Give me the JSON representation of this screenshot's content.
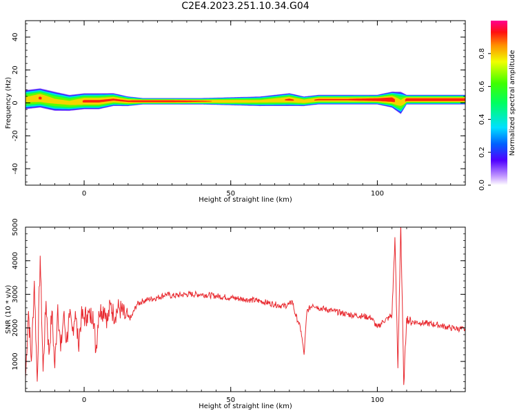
{
  "figure": {
    "title": "C2E4.2023.251.10.34.G04"
  },
  "chart_data": [
    {
      "type": "heatmap",
      "xlabel": "Height of straight line (km)",
      "ylabel": "Frequency (Hz)",
      "xlim": [
        -20,
        130
      ],
      "ylim": [
        -50,
        50
      ],
      "xticks": [
        0,
        50,
        100
      ],
      "yticks": [
        -40,
        -20,
        0,
        20,
        40
      ],
      "colorbar": {
        "label": "Normalized spectral amplitude",
        "range": [
          0,
          1
        ],
        "ticks": [
          0.0,
          0.2,
          0.4,
          0.6,
          0.8
        ],
        "colormap": "rainbow (violet-blue-cyan-green-yellow-red-magenta)"
      },
      "ridge": {
        "x": [
          -20,
          -15,
          -10,
          -5,
          0,
          5,
          10,
          15,
          20,
          30,
          40,
          50,
          60,
          70,
          75,
          80,
          90,
          100,
          105,
          108,
          110,
          115,
          120,
          130
        ],
        "center_hz": [
          2,
          3,
          1,
          0,
          1,
          1,
          2,
          1,
          1,
          1,
          1,
          1,
          1,
          2,
          1,
          2,
          2,
          2,
          2,
          0,
          2,
          2,
          2,
          2
        ],
        "halfwidth_hz": [
          6,
          6,
          6,
          5,
          5,
          5,
          4,
          3,
          2,
          2,
          2,
          2.5,
          3,
          4,
          3,
          3,
          3,
          3,
          5,
          7,
          3,
          3,
          3,
          3
        ],
        "peak_amplitude": [
          0.8,
          0.9,
          0.8,
          0.8,
          0.9,
          0.9,
          0.9,
          0.9,
          0.95,
          0.95,
          0.9,
          0.85,
          0.8,
          0.9,
          0.85,
          0.9,
          0.9,
          0.95,
          0.95,
          0.8,
          0.95,
          0.95,
          0.95,
          0.95
        ]
      }
    },
    {
      "type": "line",
      "xlabel": "Height of straight line (km)",
      "ylabel": "SNR (10 * v/v)",
      "xlim": [
        -20,
        130
      ],
      "ylim": [
        100,
        5000
      ],
      "xticks": [
        0,
        50,
        100
      ],
      "yticks": [
        1000,
        2000,
        3000,
        4000,
        5000
      ],
      "color": "#e8282e",
      "series": [
        {
          "x": [
            -20,
            -19,
            -18,
            -17,
            -16,
            -15,
            -14,
            -13,
            -12,
            -11,
            -10,
            -9,
            -8,
            -7,
            -6,
            -5,
            -4,
            -3,
            -2,
            -1,
            0,
            1,
            2,
            3,
            4,
            5,
            6,
            7,
            8,
            9,
            10,
            12,
            14,
            16,
            18,
            20,
            22,
            25,
            28,
            30,
            35,
            40,
            45,
            50,
            55,
            60,
            65,
            68,
            70,
            71,
            72,
            73,
            74,
            75,
            76,
            78,
            80,
            85,
            90,
            95,
            98,
            100,
            102,
            104,
            105,
            106,
            107,
            108,
            109,
            110,
            111,
            115,
            120,
            125,
            130
          ],
          "y": [
            500,
            2500,
            1000,
            3400,
            400,
            4150,
            700,
            2800,
            1200,
            2500,
            800,
            2700,
            1300,
            2400,
            1600,
            2300,
            1900,
            2500,
            1500,
            2300,
            2300,
            2400,
            2300,
            2500,
            1300,
            2500,
            2500,
            2600,
            2200,
            2700,
            2400,
            2600,
            2300,
            2300,
            2700,
            2800,
            2850,
            2900,
            3000,
            2950,
            3000,
            3000,
            2950,
            2900,
            2850,
            2800,
            2700,
            2650,
            2700,
            2800,
            2400,
            2200,
            1900,
            1200,
            2500,
            2700,
            2600,
            2500,
            2400,
            2350,
            2300,
            2000,
            2200,
            2300,
            2400,
            4700,
            800,
            5100,
            300,
            2300,
            2200,
            2150,
            2100,
            2000,
            1950
          ]
        }
      ]
    }
  ]
}
